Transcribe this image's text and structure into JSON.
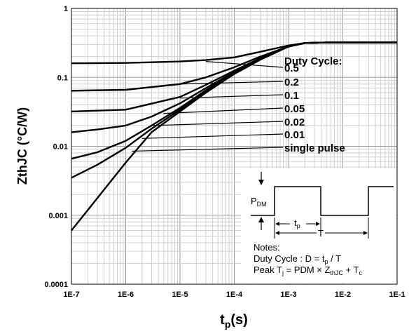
{
  "chart_data": {
    "type": "line",
    "xscale": "log",
    "yscale": "log",
    "xlim": [
      1e-07,
      0.1
    ],
    "ylim": [
      0.0001,
      1
    ],
    "x_ticks": [
      "1E-7",
      "1E-6",
      "1E-5",
      "1E-4",
      "1E-3",
      "1E-2",
      "1E-1"
    ],
    "y_ticks": [
      "0.0001",
      "0.001",
      "0.01",
      "0.1",
      "1"
    ],
    "ylabel": "ZthJC (°C/W)",
    "xlabel_main": "t",
    "xlabel_sub": "p",
    "xlabel_tail": "(s)",
    "grid": true,
    "legend_title": "Duty Cycle:",
    "series": [
      {
        "name": "0.5",
        "points": [
          [
            1e-07,
            0.16
          ],
          [
            1e-06,
            0.162
          ],
          [
            1e-05,
            0.17
          ],
          [
            3e-05,
            0.178
          ],
          [
            0.0001,
            0.195
          ],
          [
            0.0003,
            0.235
          ],
          [
            0.001,
            0.29
          ],
          [
            0.002,
            0.315
          ],
          [
            0.005,
            0.32
          ],
          [
            0.1,
            0.32
          ]
        ]
      },
      {
        "name": "0.2",
        "points": [
          [
            1e-07,
            0.064
          ],
          [
            1e-06,
            0.066
          ],
          [
            1e-05,
            0.08
          ],
          [
            3e-05,
            0.1
          ],
          [
            0.0001,
            0.14
          ],
          [
            0.0003,
            0.2
          ],
          [
            0.001,
            0.28
          ],
          [
            0.002,
            0.315
          ],
          [
            0.005,
            0.32
          ],
          [
            0.1,
            0.32
          ]
        ]
      },
      {
        "name": "0.1",
        "points": [
          [
            1e-07,
            0.032
          ],
          [
            1e-06,
            0.034
          ],
          [
            1e-05,
            0.052
          ],
          [
            3e-05,
            0.078
          ],
          [
            0.0001,
            0.125
          ],
          [
            0.0003,
            0.19
          ],
          [
            0.001,
            0.28
          ],
          [
            0.002,
            0.315
          ],
          [
            0.005,
            0.32
          ],
          [
            0.1,
            0.32
          ]
        ]
      },
      {
        "name": "0.05",
        "points": [
          [
            1e-07,
            0.016
          ],
          [
            3e-07,
            0.0175
          ],
          [
            1e-06,
            0.02
          ],
          [
            3e-06,
            0.027
          ],
          [
            1e-05,
            0.042
          ],
          [
            3e-05,
            0.07
          ],
          [
            0.0001,
            0.12
          ],
          [
            0.0003,
            0.185
          ],
          [
            0.001,
            0.28
          ],
          [
            0.002,
            0.315
          ],
          [
            0.005,
            0.32
          ],
          [
            0.1,
            0.32
          ]
        ]
      },
      {
        "name": "0.02",
        "points": [
          [
            1e-07,
            0.0066
          ],
          [
            3e-07,
            0.0082
          ],
          [
            1e-06,
            0.012
          ],
          [
            3e-06,
            0.02
          ],
          [
            1e-05,
            0.036
          ],
          [
            3e-05,
            0.065
          ],
          [
            0.0001,
            0.118
          ],
          [
            0.0003,
            0.185
          ],
          [
            0.001,
            0.28
          ],
          [
            0.002,
            0.315
          ],
          [
            0.005,
            0.32
          ],
          [
            0.1,
            0.32
          ]
        ]
      },
      {
        "name": "0.01",
        "points": [
          [
            1e-07,
            0.0035
          ],
          [
            3e-07,
            0.0054
          ],
          [
            1e-06,
            0.0095
          ],
          [
            3e-06,
            0.018
          ],
          [
            1e-05,
            0.034
          ],
          [
            3e-05,
            0.063
          ],
          [
            0.0001,
            0.115
          ],
          [
            0.0003,
            0.185
          ],
          [
            0.001,
            0.28
          ],
          [
            0.002,
            0.315
          ],
          [
            0.005,
            0.32
          ],
          [
            0.1,
            0.32
          ]
        ]
      },
      {
        "name": "single pulse",
        "points": [
          [
            1e-07,
            0.0006
          ],
          [
            1e-06,
            0.0058
          ],
          [
            3e-06,
            0.016
          ],
          [
            1e-05,
            0.032
          ],
          [
            3e-05,
            0.06
          ],
          [
            0.0001,
            0.112
          ],
          [
            0.0003,
            0.18
          ],
          [
            0.001,
            0.28
          ],
          [
            0.002,
            0.315
          ],
          [
            0.005,
            0.32
          ],
          [
            0.1,
            0.32
          ]
        ]
      }
    ],
    "leaders": [
      {
        "name": "0.5",
        "from": [
          3e-05,
          0.17
        ]
      },
      {
        "name": "0.2",
        "from": [
          1e-05,
          0.08
        ]
      },
      {
        "name": "0.1",
        "from": [
          1e-05,
          0.05
        ]
      },
      {
        "name": "0.05",
        "from": [
          5e-06,
          0.03
        ]
      },
      {
        "name": "0.02",
        "from": [
          3e-06,
          0.02
        ]
      },
      {
        "name": "0.01",
        "from": [
          2e-06,
          0.013
        ]
      },
      {
        "name": "single pulse",
        "from": [
          1.3e-06,
          0.0085
        ]
      }
    ]
  },
  "inset": {
    "pdm_main": "P",
    "pdm_sub": "DM",
    "tp_main": "t",
    "tp_sub": "p",
    "period": "T",
    "notes_title": "Notes:",
    "note1_text": "Duty Cycle : D = t",
    "note1_sub": "p",
    "note1_tail": " / T",
    "note2_a": "Peak T",
    "note2_a_sub": "j",
    "note2_b": " = PDM × Z",
    "note2_b_sub": "thJC",
    "note2_c": " + T",
    "note2_c_sub": "c"
  }
}
